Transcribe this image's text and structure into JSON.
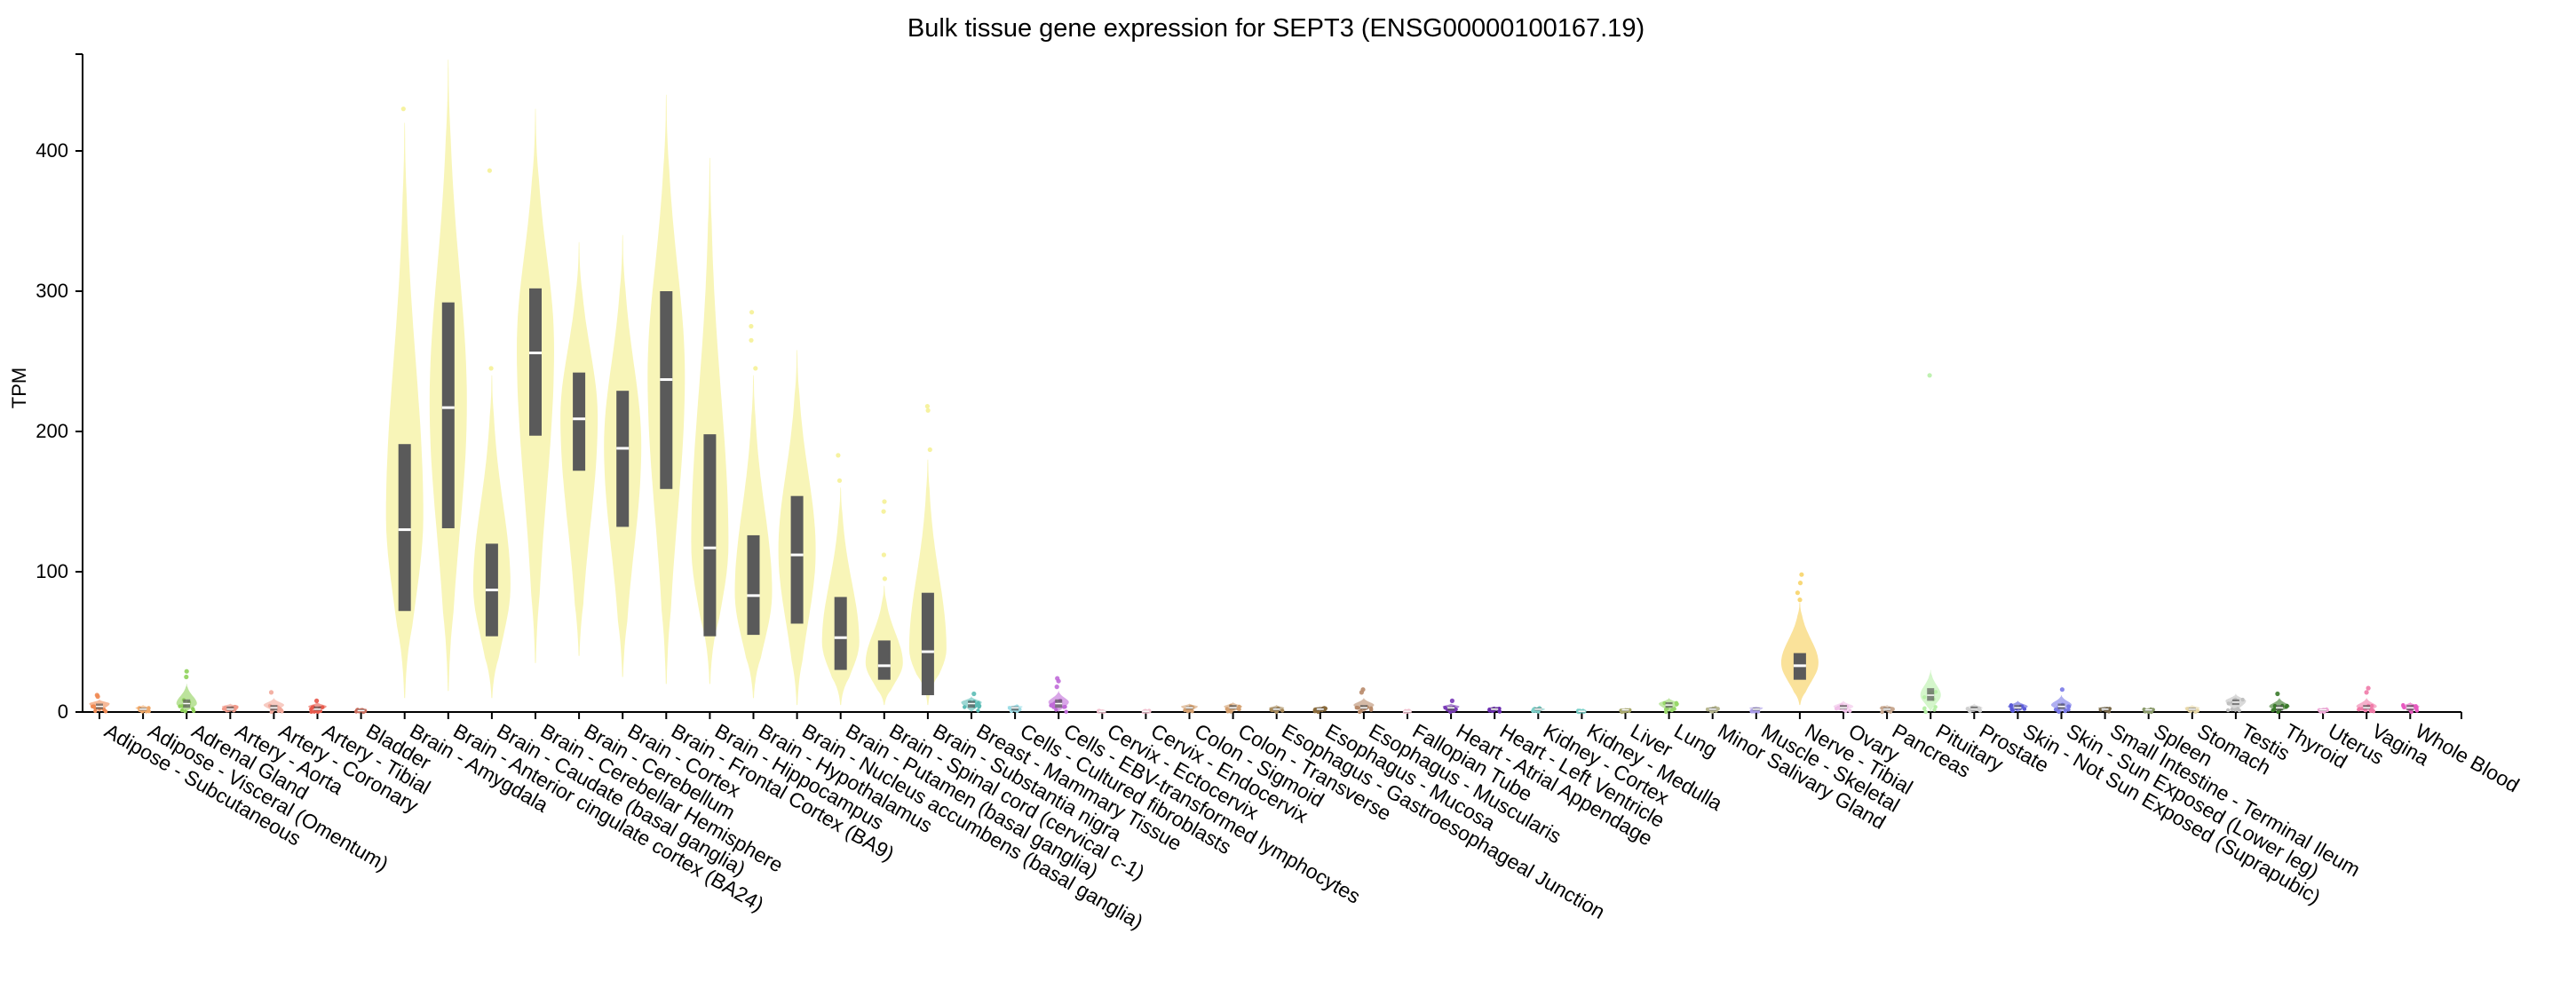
{
  "chart_data": {
    "type": "violin",
    "title": "Bulk tissue gene expression for SEPT3 (ENSG00000100167.19)",
    "xlabel": "",
    "ylabel": "TPM",
    "ylim": [
      0,
      470
    ],
    "yticks": [
      0,
      100,
      200,
      300,
      400
    ],
    "grid": false,
    "legend": "none",
    "categories": [
      {
        "name": "Adipose - Subcutaneous",
        "color": "#f08a53",
        "q1": 2,
        "median": 4,
        "q3": 6,
        "min": 0,
        "max": 9,
        "peak": 6,
        "outliers": [
          11,
          12
        ]
      },
      {
        "name": "Adipose - Visceral (Omentum)",
        "color": "#f0a868",
        "q1": 1,
        "median": 2,
        "q3": 3,
        "min": 0,
        "max": 5,
        "peak": 3,
        "outliers": []
      },
      {
        "name": "Adrenal Gland",
        "color": "#8fd15a",
        "q1": 3,
        "median": 6,
        "q3": 9,
        "min": 0,
        "max": 20,
        "peak": 6,
        "outliers": [
          25,
          29
        ]
      },
      {
        "name": "Artery - Aorta",
        "color": "#f29a8a",
        "q1": 1,
        "median": 2,
        "q3": 4,
        "min": 0,
        "max": 6,
        "peak": 4,
        "outliers": []
      },
      {
        "name": "Artery - Coronary",
        "color": "#f2a89a",
        "q1": 1,
        "median": 3,
        "q3": 5,
        "min": 0,
        "max": 10,
        "peak": 5,
        "outliers": [
          14
        ]
      },
      {
        "name": "Artery - Tibial",
        "color": "#e8584a",
        "q1": 1,
        "median": 2,
        "q3": 4,
        "min": 0,
        "max": 7,
        "peak": 4,
        "outliers": [
          8
        ]
      },
      {
        "name": "Bladder",
        "color": "#c86a5a",
        "q1": 0.5,
        "median": 1,
        "q3": 2,
        "min": 0,
        "max": 3,
        "peak": 2,
        "outliers": []
      },
      {
        "name": "Brain - Amygdala",
        "color": "#f6f2a0",
        "q1": 72,
        "median": 130,
        "q3": 191,
        "min": 10,
        "max": 420,
        "peak": 140,
        "outliers": [
          430
        ]
      },
      {
        "name": "Brain - Anterior cingulate cortex (BA24)",
        "color": "#f6f2a0",
        "q1": 131,
        "median": 217,
        "q3": 292,
        "min": 15,
        "max": 465,
        "peak": 220,
        "outliers": []
      },
      {
        "name": "Brain - Caudate (basal ganglia)",
        "color": "#f6f2a0",
        "q1": 54,
        "median": 87,
        "q3": 120,
        "min": 10,
        "max": 240,
        "peak": 90,
        "outliers": [
          245,
          386
        ]
      },
      {
        "name": "Brain - Cerebellar Hemisphere",
        "color": "#f6f2a0",
        "q1": 197,
        "median": 256,
        "q3": 302,
        "min": 35,
        "max": 430,
        "peak": 260,
        "outliers": []
      },
      {
        "name": "Brain - Cerebellum",
        "color": "#f6f2a0",
        "q1": 172,
        "median": 209,
        "q3": 242,
        "min": 40,
        "max": 335,
        "peak": 210,
        "outliers": []
      },
      {
        "name": "Brain - Cortex",
        "color": "#f6f2a0",
        "q1": 132,
        "median": 188,
        "q3": 229,
        "min": 25,
        "max": 340,
        "peak": 190,
        "outliers": []
      },
      {
        "name": "Brain - Frontal Cortex (BA9)",
        "color": "#f6f2a0",
        "q1": 159,
        "median": 237,
        "q3": 300,
        "min": 20,
        "max": 440,
        "peak": 240,
        "outliers": []
      },
      {
        "name": "Brain - Hippocampus",
        "color": "#f6f2a0",
        "q1": 54,
        "median": 117,
        "q3": 198,
        "min": 20,
        "max": 395,
        "peak": 120,
        "outliers": []
      },
      {
        "name": "Brain - Hypothalamus",
        "color": "#f6f2a0",
        "q1": 55,
        "median": 83,
        "q3": 126,
        "min": 10,
        "max": 240,
        "peak": 85,
        "outliers": [
          245,
          265,
          275,
          285
        ]
      },
      {
        "name": "Brain - Nucleus accumbens (basal ganglia)",
        "color": "#f6f2a0",
        "q1": 63,
        "median": 112,
        "q3": 154,
        "min": 5,
        "max": 258,
        "peak": 115,
        "outliers": []
      },
      {
        "name": "Brain - Putamen (basal ganglia)",
        "color": "#f6f2a0",
        "q1": 30,
        "median": 53,
        "q3": 82,
        "min": 5,
        "max": 160,
        "peak": 50,
        "outliers": [
          165,
          183
        ]
      },
      {
        "name": "Brain - Spinal cord (cervical c-1)",
        "color": "#f6f2a0",
        "q1": 23,
        "median": 33,
        "q3": 51,
        "min": 5,
        "max": 90,
        "peak": 35,
        "outliers": [
          95,
          112,
          143,
          150
        ]
      },
      {
        "name": "Brain - Substantia nigra",
        "color": "#f6f2a0",
        "q1": 12,
        "median": 43,
        "q3": 85,
        "min": 5,
        "max": 180,
        "peak": 45,
        "outliers": [
          187,
          215,
          218
        ]
      },
      {
        "name": "Breast - Mammary Tissue",
        "color": "#5bbcb5",
        "q1": 3,
        "median": 6,
        "q3": 8,
        "min": 0,
        "max": 11,
        "peak": 7,
        "outliers": [
          13
        ]
      },
      {
        "name": "Cells - Cultured fibroblasts",
        "color": "#9ddde6",
        "q1": 1,
        "median": 3,
        "q3": 4,
        "min": 0,
        "max": 5,
        "peak": 4,
        "outliers": []
      },
      {
        "name": "Cells - EBV-transformed lymphocytes",
        "color": "#c06ad8",
        "q1": 3,
        "median": 6,
        "q3": 9,
        "min": 0,
        "max": 15,
        "peak": 7,
        "outliers": [
          18,
          22,
          24
        ]
      },
      {
        "name": "Cervix - Ectocervix",
        "color": "#f3c2d0",
        "q1": 0.2,
        "median": 0.5,
        "q3": 1,
        "min": 0,
        "max": 1.5,
        "peak": 1,
        "outliers": []
      },
      {
        "name": "Cervix - Endocervix",
        "color": "#f3c2d0",
        "q1": 0.2,
        "median": 0.5,
        "q3": 1,
        "min": 0,
        "max": 1.5,
        "peak": 1,
        "outliers": []
      },
      {
        "name": "Colon - Sigmoid",
        "color": "#d4a070",
        "q1": 2,
        "median": 3,
        "q3": 4,
        "min": 0,
        "max": 6,
        "peak": 4,
        "outliers": []
      },
      {
        "name": "Colon - Transverse",
        "color": "#d4a070",
        "q1": 2,
        "median": 3,
        "q3": 5,
        "min": 0,
        "max": 7,
        "peak": 4,
        "outliers": []
      },
      {
        "name": "Esophagus - Gastroesophageal Junction",
        "color": "#a88a5a",
        "q1": 1,
        "median": 2,
        "q3": 3,
        "min": 0,
        "max": 5,
        "peak": 3,
        "outliers": []
      },
      {
        "name": "Esophagus - Mucosa",
        "color": "#8a6a3a",
        "q1": 1,
        "median": 2,
        "q3": 3,
        "min": 0,
        "max": 4,
        "peak": 3,
        "outliers": []
      },
      {
        "name": "Esophagus - Muscularis",
        "color": "#b88a6a",
        "q1": 2,
        "median": 3,
        "q3": 5,
        "min": 0,
        "max": 10,
        "peak": 5,
        "outliers": [
          14,
          16
        ]
      },
      {
        "name": "Fallopian Tube",
        "color": "#f3c2d0",
        "q1": 0.2,
        "median": 0.5,
        "q3": 1,
        "min": 0,
        "max": 1.5,
        "peak": 1,
        "outliers": []
      },
      {
        "name": "Heart - Atrial Appendage",
        "color": "#7a3ab8",
        "q1": 1,
        "median": 3,
        "q3": 4,
        "min": 0,
        "max": 6,
        "peak": 4,
        "outliers": [
          8
        ]
      },
      {
        "name": "Heart - Left Ventricle",
        "color": "#6a2ab0",
        "q1": 1,
        "median": 2,
        "q3": 3,
        "min": 0,
        "max": 4,
        "peak": 3,
        "outliers": []
      },
      {
        "name": "Kidney - Cortex",
        "color": "#7ad0c8",
        "q1": 1,
        "median": 2,
        "q3": 3,
        "min": 0,
        "max": 4,
        "peak": 2,
        "outliers": []
      },
      {
        "name": "Kidney - Medulla",
        "color": "#7ad0c8",
        "q1": 0.2,
        "median": 0.5,
        "q3": 1,
        "min": 0,
        "max": 1.5,
        "peak": 1,
        "outliers": []
      },
      {
        "name": "Liver",
        "color": "#a8a86a",
        "q1": 1,
        "median": 1.5,
        "q3": 2,
        "min": 0,
        "max": 3,
        "peak": 2,
        "outliers": []
      },
      {
        "name": "Lung",
        "color": "#98d86a",
        "q1": 3,
        "median": 5,
        "q3": 7,
        "min": 0,
        "max": 10,
        "peak": 6,
        "outliers": []
      },
      {
        "name": "Minor Salivary Gland",
        "color": "#b8b890",
        "q1": 1,
        "median": 2,
        "q3": 3,
        "min": 0,
        "max": 4,
        "peak": 3,
        "outliers": []
      },
      {
        "name": "Muscle - Skeletal",
        "color": "#a89ae8",
        "q1": 1,
        "median": 2,
        "q3": 3,
        "min": 0,
        "max": 4,
        "peak": 3,
        "outliers": []
      },
      {
        "name": "Nerve - Tibial",
        "color": "#f8d878",
        "q1": 23,
        "median": 33,
        "q3": 42,
        "min": 5,
        "max": 78,
        "peak": 35,
        "outliers": [
          80,
          85,
          92,
          98
        ]
      },
      {
        "name": "Ovary",
        "color": "#f0c0e8",
        "q1": 2,
        "median": 3,
        "q3": 5,
        "min": 0,
        "max": 8,
        "peak": 4,
        "outliers": []
      },
      {
        "name": "Pancreas",
        "color": "#c8a890",
        "q1": 1,
        "median": 2,
        "q3": 3,
        "min": 0,
        "max": 5,
        "peak": 3,
        "outliers": []
      },
      {
        "name": "Pituitary",
        "color": "#b8f0a8",
        "q1": 8,
        "median": 12,
        "q3": 17,
        "min": 0,
        "max": 30,
        "peak": 12,
        "outliers": [
          240
        ]
      },
      {
        "name": "Prostate",
        "color": "#d0d0d0",
        "q1": 1,
        "median": 2,
        "q3": 4,
        "min": 0,
        "max": 6,
        "peak": 3,
        "outliers": []
      },
      {
        "name": "Skin - Not Sun Exposed (Suprapubic)",
        "color": "#5a5ad8",
        "q1": 2,
        "median": 3,
        "q3": 5,
        "min": 0,
        "max": 8,
        "peak": 4,
        "outliers": []
      },
      {
        "name": "Skin - Sun Exposed (Lower leg)",
        "color": "#7a7ae8",
        "q1": 2,
        "median": 4,
        "q3": 6,
        "min": 0,
        "max": 12,
        "peak": 5,
        "outliers": [
          16
        ]
      },
      {
        "name": "Small Intestine - Terminal Ileum",
        "color": "#7a6a4a",
        "q1": 1,
        "median": 2,
        "q3": 3,
        "min": 0,
        "max": 4,
        "peak": 3,
        "outliers": []
      },
      {
        "name": "Spleen",
        "color": "#8a9a6a",
        "q1": 1,
        "median": 1.5,
        "q3": 2,
        "min": 0,
        "max": 3,
        "peak": 2,
        "outliers": []
      },
      {
        "name": "Stomach",
        "color": "#e8d8a8",
        "q1": 1,
        "median": 2,
        "q3": 3,
        "min": 0,
        "max": 5,
        "peak": 3,
        "outliers": []
      },
      {
        "name": "Testis",
        "color": "#c0c0c0",
        "q1": 5,
        "median": 7,
        "q3": 9,
        "min": 0,
        "max": 13,
        "peak": 8,
        "outliers": []
      },
      {
        "name": "Thyroid",
        "color": "#3a7a2a",
        "q1": 1,
        "median": 3,
        "q3": 5,
        "min": 0,
        "max": 10,
        "peak": 4,
        "outliers": [
          13
        ]
      },
      {
        "name": "Uterus",
        "color": "#f0a8d8",
        "q1": 1,
        "median": 1.5,
        "q3": 2,
        "min": 0,
        "max": 3,
        "peak": 2,
        "outliers": []
      },
      {
        "name": "Vagina",
        "color": "#f07aa8",
        "q1": 2,
        "median": 3,
        "q3": 5,
        "min": 0,
        "max": 10,
        "peak": 4,
        "outliers": [
          14,
          17
        ]
      },
      {
        "name": "Whole Blood",
        "color": "#e858c0",
        "q1": 1,
        "median": 3,
        "q3": 5,
        "min": 0,
        "max": 7,
        "peak": 4,
        "outliers": []
      }
    ]
  }
}
